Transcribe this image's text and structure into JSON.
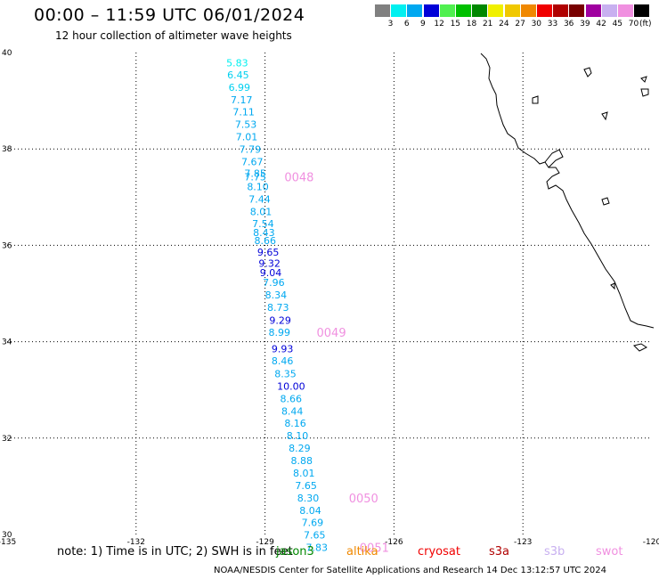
{
  "title": "00:00 – 11:59 UTC 06/01/2024",
  "subtitle": "12 hour collection of altimeter wave heights",
  "legend": {
    "unit": "(ft)",
    "bins": [
      {
        "label": "3",
        "color": "#808080"
      },
      {
        "label": "6",
        "color": "#00f0f0"
      },
      {
        "label": "9",
        "color": "#00a8f0"
      },
      {
        "label": "12",
        "color": "#0000d8"
      },
      {
        "label": "15",
        "color": "#50f050"
      },
      {
        "label": "18",
        "color": "#00c000"
      },
      {
        "label": "21",
        "color": "#008800"
      },
      {
        "label": "24",
        "color": "#f0f000"
      },
      {
        "label": "27",
        "color": "#f0c800"
      },
      {
        "label": "30",
        "color": "#f08800"
      },
      {
        "label": "33",
        "color": "#f00000"
      },
      {
        "label": "36",
        "color": "#b00000"
      },
      {
        "label": "39",
        "color": "#780000"
      },
      {
        "label": "42",
        "color": "#a000a0"
      },
      {
        "label": "45",
        "color": "#c8b0f0"
      },
      {
        "label": "70",
        "color": "#f090e0"
      },
      {
        "label": "",
        "color": "#000000"
      }
    ]
  },
  "axes": {
    "x_ticks": [
      "-135",
      "-132",
      "-129",
      "-126",
      "-123",
      "-120"
    ],
    "y_ticks": [
      "40",
      "38",
      "36",
      "34",
      "32",
      "30"
    ]
  },
  "chart_data": {
    "type": "scatter",
    "x_range": [
      -135,
      -120
    ],
    "y_range": [
      30,
      40
    ],
    "points": [
      {
        "lon": -129.9,
        "lat": 39.79,
        "value": "5.83",
        "color": "#00f0f0"
      },
      {
        "lon": -129.88,
        "lat": 39.54,
        "value": "6.45",
        "color": "#00d0f0"
      },
      {
        "lon": -129.85,
        "lat": 39.28,
        "value": "6.99",
        "color": "#00d0f0"
      },
      {
        "lon": -129.8,
        "lat": 39.02,
        "value": "7.17",
        "color": "#00a8f0"
      },
      {
        "lon": -129.75,
        "lat": 38.77,
        "value": "7.11",
        "color": "#00a8f0"
      },
      {
        "lon": -129.7,
        "lat": 38.51,
        "value": "7.53",
        "color": "#00a8f0"
      },
      {
        "lon": -129.68,
        "lat": 38.25,
        "value": "7.01",
        "color": "#00a8f0"
      },
      {
        "lon": -129.6,
        "lat": 37.99,
        "value": "7.79",
        "color": "#00a8f0"
      },
      {
        "lon": -129.55,
        "lat": 37.74,
        "value": "7.67",
        "color": "#00a8f0"
      },
      {
        "lon": -129.48,
        "lat": 37.5,
        "value": "7.85",
        "color": "#00a8f0"
      },
      {
        "lon": -129.48,
        "lat": 37.42,
        "value": "7.75",
        "color": "#00a8f0"
      },
      {
        "lon": -129.42,
        "lat": 37.22,
        "value": "8.10",
        "color": "#00a8f0"
      },
      {
        "lon": -129.38,
        "lat": 36.96,
        "value": "7.44",
        "color": "#00a8f0"
      },
      {
        "lon": -129.35,
        "lat": 36.7,
        "value": "8.01",
        "color": "#00a8f0"
      },
      {
        "lon": -129.3,
        "lat": 36.45,
        "value": "7.54",
        "color": "#00a8f0"
      },
      {
        "lon": -129.28,
        "lat": 36.27,
        "value": "8.43",
        "color": "#00a8f0"
      },
      {
        "lon": -129.25,
        "lat": 36.1,
        "value": "8.66",
        "color": "#00a8f0"
      },
      {
        "lon": -129.18,
        "lat": 35.86,
        "value": "9.65",
        "color": "#0000d8"
      },
      {
        "lon": -129.15,
        "lat": 35.63,
        "value": "9.32",
        "color": "#0000d8"
      },
      {
        "lon": -129.12,
        "lat": 35.43,
        "value": "9.04",
        "color": "#0000d8"
      },
      {
        "lon": -129.05,
        "lat": 35.23,
        "value": "7.96",
        "color": "#00a8f0"
      },
      {
        "lon": -129.0,
        "lat": 34.97,
        "value": "8.34",
        "color": "#00a8f0"
      },
      {
        "lon": -128.95,
        "lat": 34.71,
        "value": "8.73",
        "color": "#00a8f0"
      },
      {
        "lon": -128.9,
        "lat": 34.45,
        "value": "9.29",
        "color": "#0000d8"
      },
      {
        "lon": -128.92,
        "lat": 34.2,
        "value": "8.99",
        "color": "#00a8f0"
      },
      {
        "lon": -128.85,
        "lat": 33.85,
        "value": "9.93",
        "color": "#0000d8"
      },
      {
        "lon": -128.85,
        "lat": 33.6,
        "value": "8.46",
        "color": "#00a8f0"
      },
      {
        "lon": -128.78,
        "lat": 33.34,
        "value": "8.35",
        "color": "#00a8f0"
      },
      {
        "lon": -128.72,
        "lat": 33.08,
        "value": "10.00",
        "color": "#0000d8"
      },
      {
        "lon": -128.65,
        "lat": 32.82,
        "value": "8.66",
        "color": "#00a8f0"
      },
      {
        "lon": -128.62,
        "lat": 32.56,
        "value": "8.44",
        "color": "#00a8f0"
      },
      {
        "lon": -128.55,
        "lat": 32.31,
        "value": "8.16",
        "color": "#00a8f0"
      },
      {
        "lon": -128.5,
        "lat": 32.05,
        "value": "8.10",
        "color": "#00a8f0"
      },
      {
        "lon": -128.45,
        "lat": 31.79,
        "value": "8.29",
        "color": "#00a8f0"
      },
      {
        "lon": -128.4,
        "lat": 31.53,
        "value": "8.88",
        "color": "#00a8f0"
      },
      {
        "lon": -128.35,
        "lat": 31.28,
        "value": "8.01",
        "color": "#00a8f0"
      },
      {
        "lon": -128.3,
        "lat": 31.02,
        "value": "7.65",
        "color": "#00a8f0"
      },
      {
        "lon": -128.25,
        "lat": 30.76,
        "value": "8.30",
        "color": "#00a8f0"
      },
      {
        "lon": -128.2,
        "lat": 30.5,
        "value": "8.04",
        "color": "#00a8f0"
      },
      {
        "lon": -128.15,
        "lat": 30.25,
        "value": "7.69",
        "color": "#00a8f0"
      },
      {
        "lon": -128.1,
        "lat": 29.99,
        "value": "7.65",
        "color": "#00a8f0"
      },
      {
        "lon": -128.05,
        "lat": 29.73,
        "value": "7.83",
        "color": "#00a8f0"
      }
    ],
    "time_labels": [
      {
        "lon": -128.55,
        "lat": 37.42,
        "text": "0048",
        "color": "#f090e0"
      },
      {
        "lon": -127.8,
        "lat": 34.2,
        "text": "0049",
        "color": "#f090e0"
      },
      {
        "lon": -127.05,
        "lat": 30.76,
        "text": "0050",
        "color": "#f090e0"
      },
      {
        "lon": -126.8,
        "lat": 29.73,
        "text": "0051",
        "color": "#f090e0"
      }
    ]
  },
  "note": "note:  1) Time is in UTC;  2) SWH is in feet",
  "satellites": [
    {
      "name": "jason3",
      "color": "#008800"
    },
    {
      "name": "altika",
      "color": "#f08800"
    },
    {
      "name": "cryosat",
      "color": "#f00000"
    },
    {
      "name": "s3a",
      "color": "#b00000"
    },
    {
      "name": "s3b",
      "color": "#c8b0f0"
    },
    {
      "name": "swot",
      "color": "#f090e0"
    }
  ],
  "footer": "NOAA/NESDIS Center for Satellite Applications and Research     14 Dec 13:12:57 UTC 2024"
}
